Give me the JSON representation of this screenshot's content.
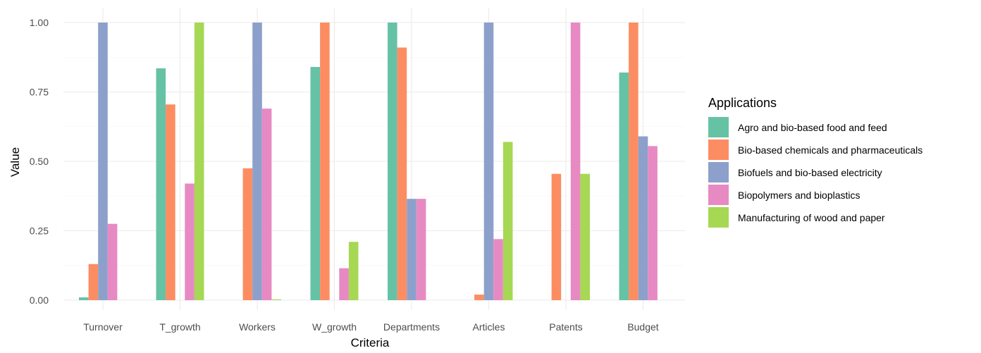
{
  "chart_data": {
    "type": "bar",
    "xlabel": "Criteria",
    "ylabel": "Value",
    "ylim": [
      0,
      1
    ],
    "yticks": [
      "0.00",
      "0.25",
      "0.50",
      "0.75",
      "1.00"
    ],
    "ytick_values": [
      0,
      0.25,
      0.5,
      0.75,
      1.0
    ],
    "grid": true,
    "legend_position": "right",
    "legend_title": "Applications",
    "categories": [
      "Turnover",
      "T_growth",
      "Workers",
      "W_growth",
      "Departments",
      "Articles",
      "Patents",
      "Budget"
    ],
    "series": [
      {
        "name": "Agro and bio-based food and feed",
        "color": "#66c2a5",
        "values": [
          0.01,
          0.835,
          0.0,
          0.84,
          1.0,
          0.0,
          0.0,
          0.82
        ]
      },
      {
        "name": "Bio-based chemicals and pharmaceuticals",
        "color": "#fc8d62",
        "values": [
          0.13,
          0.705,
          0.475,
          1.0,
          0.91,
          0.02,
          0.455,
          1.0
        ]
      },
      {
        "name": "Biofuels and bio-based electricity",
        "color": "#8da0cb",
        "values": [
          1.0,
          0.0,
          1.0,
          0.0,
          0.365,
          1.0,
          0.0,
          0.59
        ]
      },
      {
        "name": "Biopolymers and bioplastics",
        "color": "#e78ac3",
        "values": [
          0.275,
          0.42,
          0.69,
          0.115,
          0.365,
          0.22,
          1.0,
          0.555
        ]
      },
      {
        "name": "Manufacturing of wood and paper",
        "color": "#a6d854",
        "values": [
          0.0,
          1.0,
          0.003,
          0.21,
          0.0,
          0.57,
          0.455,
          0.0
        ]
      }
    ]
  }
}
